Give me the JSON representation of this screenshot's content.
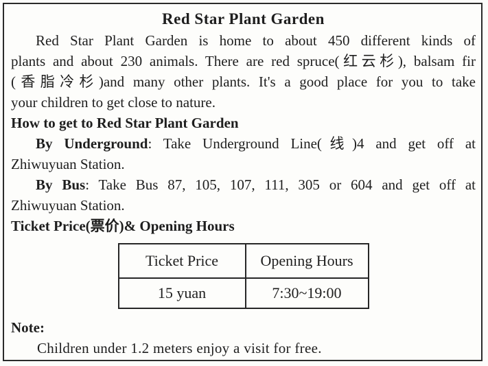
{
  "page": {
    "title": "Red Star Plant Garden",
    "intro_lines": [
      "Red Star Plant Garden is home to about 450 different kinds of",
      "plants and about 230 animals. There are red spruce(红云杉), balsam fir",
      "(香脂冷杉)and many other plants. It's a good place for you to take",
      "your children to get close to nature."
    ],
    "how_to_heading": "How to get to Red Star Plant Garden",
    "underground": {
      "label": "By Underground",
      "rest": ": Take Underground Line(线)4 and get off at",
      "line2": "Zhiwuyuan Station."
    },
    "bus": {
      "label": "By Bus",
      "rest": ": Take Bus 87, 105, 107, 111, 305 or 604 and get off at",
      "line2": "Zhiwuyuan Station."
    },
    "ticket_heading": "Ticket Price(票价)& Opening Hours",
    "table": {
      "headers": [
        "Ticket Price",
        "Opening Hours"
      ],
      "rows": [
        [
          "15 yuan",
          "7:30~19:00"
        ]
      ]
    },
    "note": {
      "label": "Note:",
      "text": "Children under 1.2 meters enjoy a visit for free."
    }
  }
}
